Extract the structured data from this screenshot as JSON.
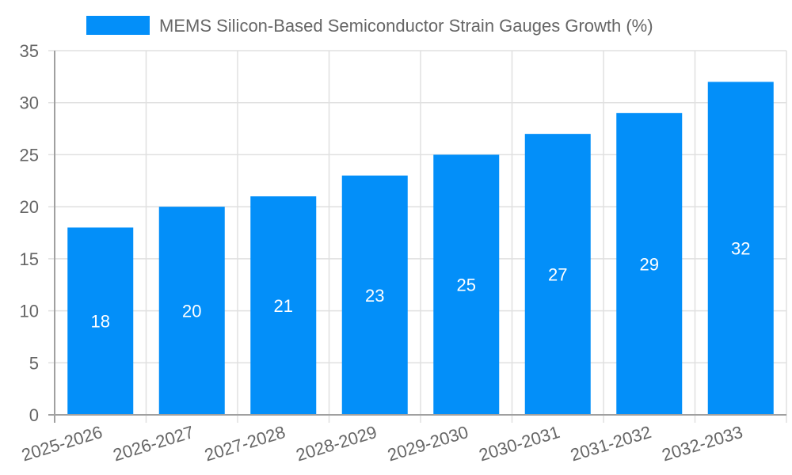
{
  "chart_data": {
    "type": "bar",
    "title": "",
    "legend": [
      {
        "label": "MEMS Silicon-Based Semiconductor Strain Gauges Growth (%)",
        "color": "#038ff9"
      }
    ],
    "legend_position": "top",
    "categories": [
      "2025-2026",
      "2026-2027",
      "2027-2028",
      "2028-2029",
      "2029-2030",
      "2030-2031",
      "2031-2032",
      "2032-2033"
    ],
    "series": [
      {
        "name": "MEMS Silicon-Based Semiconductor Strain Gauges Growth (%)",
        "values": [
          18,
          20,
          21,
          23,
          25,
          27,
          29,
          32
        ],
        "color": "#038ff9"
      }
    ],
    "data_labels": [
      "18",
      "20",
      "21",
      "23",
      "25",
      "27",
      "29",
      "32"
    ],
    "xlabel": "",
    "ylabel": "",
    "ylim": [
      0,
      35
    ],
    "yticks": [
      0,
      5,
      10,
      15,
      20,
      25,
      30,
      35
    ],
    "grid": true
  }
}
